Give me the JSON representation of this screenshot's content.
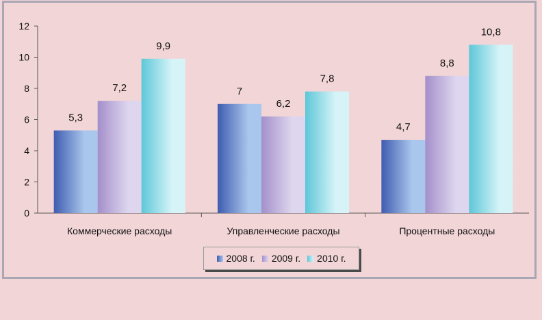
{
  "chart_data": {
    "type": "bar",
    "categories": [
      "Коммерческие расходы",
      "Управленческие расходы",
      "Процентные расходы"
    ],
    "series": [
      {
        "name": "2008 г.",
        "values": [
          5.3,
          7,
          4.7
        ],
        "labels": [
          "5,3",
          "7",
          "4,7"
        ],
        "color_dark": "#3f5cb0",
        "color_light": "#a9c6ec"
      },
      {
        "name": "2009 г.",
        "values": [
          7.2,
          6.2,
          8.8
        ],
        "labels": [
          "7,2",
          "6,2",
          "8,8"
        ],
        "color_dark": "#a48fcb",
        "color_light": "#ddd6ee"
      },
      {
        "name": "2010 г.",
        "values": [
          9.9,
          7.8,
          10.8
        ],
        "labels": [
          "9,9",
          "7,8",
          "10,8"
        ],
        "color_dark": "#5ec7d8",
        "color_light": "#d6f4f8"
      }
    ],
    "yticks": [
      "0",
      "2",
      "4",
      "6",
      "8",
      "10",
      "12"
    ],
    "ylim": [
      0,
      12
    ],
    "legend_position": "bottom"
  }
}
